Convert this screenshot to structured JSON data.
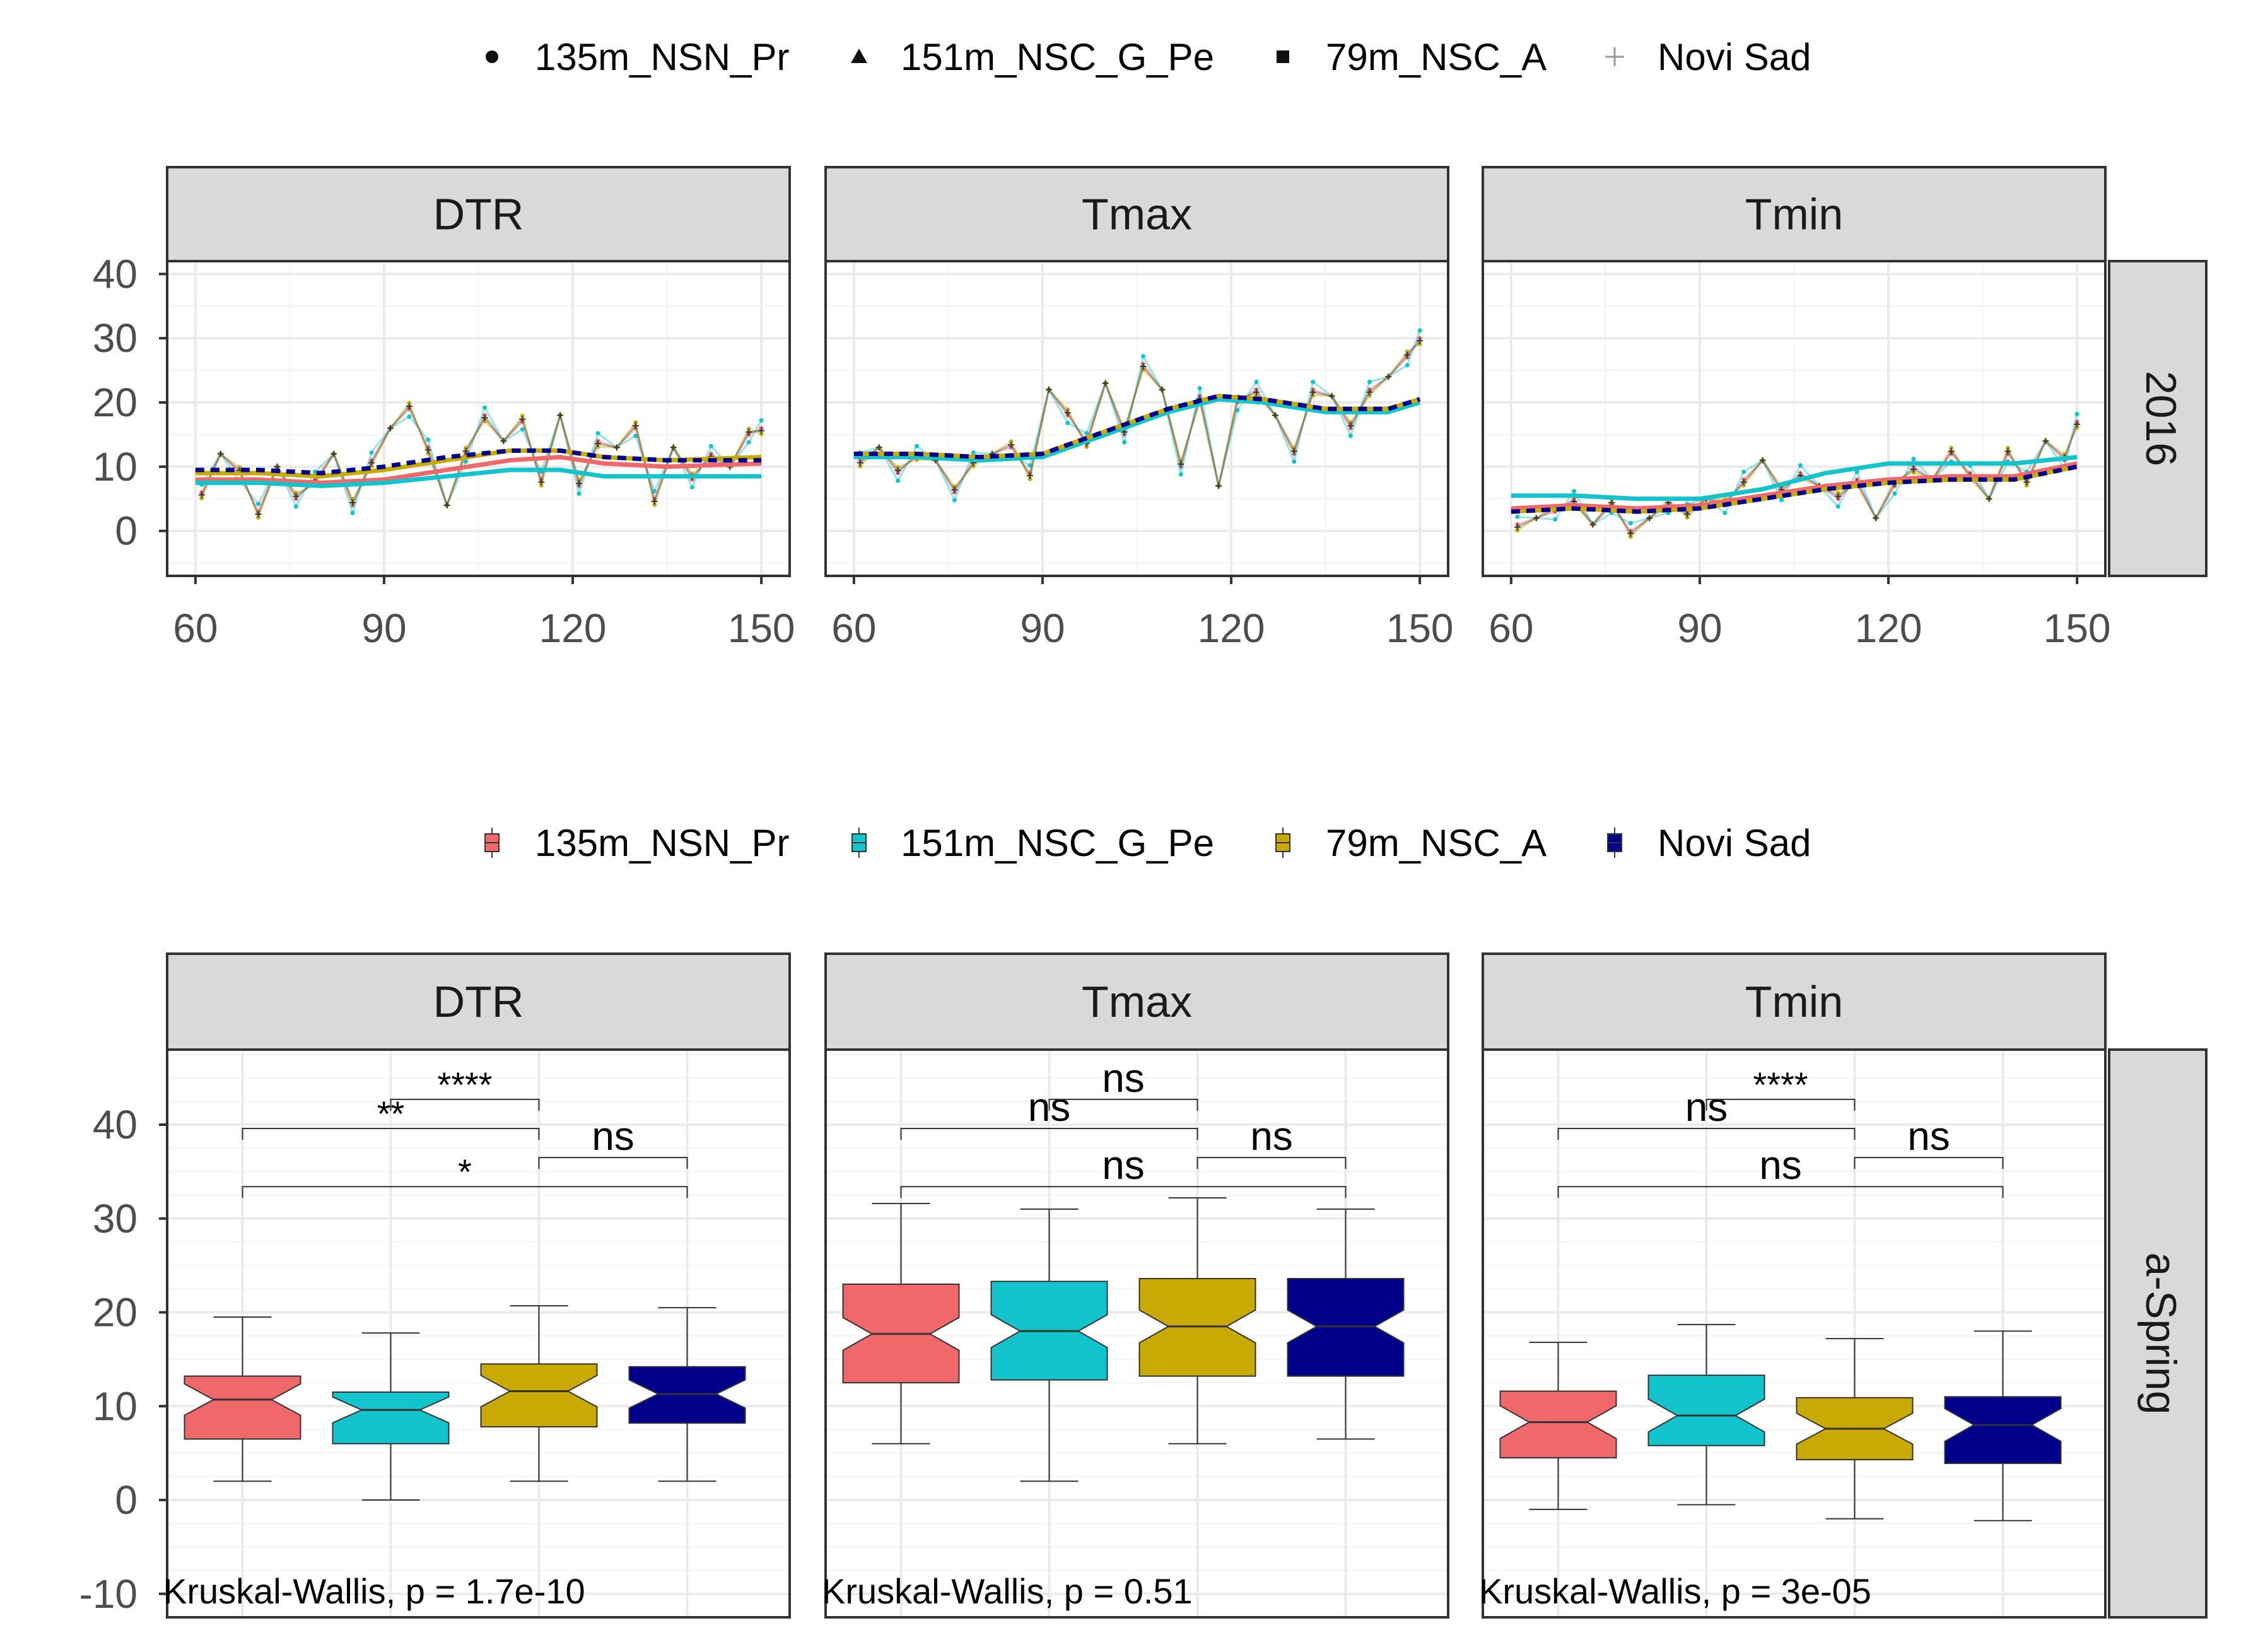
{
  "colors": {
    "135m_NSN_Pr": "#F0686A",
    "151m_NSC_G_Pe": "#14C4CC",
    "79m_NSC_A": "#C9AA05",
    "Novi Sad": "#00008B",
    "strip_bg": "#D9D9D9",
    "grid_major": "#EBEBEB",
    "grid_minor": "#F4F4F4",
    "text": "#4D4D4D",
    "frame": "#333333"
  },
  "legends": {
    "top": {
      "items": [
        {
          "key": "135m_NSN_Pr",
          "label": "135m_NSN_Pr",
          "shape": "circle-icon"
        },
        {
          "key": "151m_NSC_G_Pe",
          "label": "151m_NSC_G_Pe",
          "shape": "triangle-icon"
        },
        {
          "key": "79m_NSC_A",
          "label": "79m_NSC_A",
          "shape": "square-icon"
        },
        {
          "key": "Novi Sad",
          "label": "Novi Sad",
          "shape": "plus-icon"
        }
      ]
    },
    "bottom": {
      "items": [
        {
          "key": "135m_NSN_Pr",
          "label": "135m_NSN_Pr",
          "shape": "boxplot-icon"
        },
        {
          "key": "151m_NSC_G_Pe",
          "label": "151m_NSC_G_Pe",
          "shape": "boxplot-icon"
        },
        {
          "key": "79m_NSC_A",
          "label": "79m_NSC_A",
          "shape": "boxplot-icon"
        },
        {
          "key": "Novi Sad",
          "label": "Novi Sad",
          "shape": "boxplot-icon"
        }
      ]
    }
  },
  "chart_data": [
    {
      "type": "line",
      "title": "",
      "row_strip": "2016",
      "facets": [
        "DTR",
        "Tmax",
        "Tmin"
      ],
      "x_ticks": [
        60,
        90,
        120,
        150
      ],
      "x_range": [
        55.5,
        154.5
      ],
      "y_ticks": [
        0,
        10,
        20,
        30,
        40
      ],
      "y_range": [
        -7,
        42
      ],
      "grid": true,
      "smooth_series": {
        "DTR": [
          {
            "name": "135m_NSN_Pr",
            "x": [
              60,
              70,
              80,
              90,
              100,
              110,
              118,
              125,
              135,
              150
            ],
            "y": [
              8,
              8,
              7.5,
              8,
              9.5,
              11,
              11.5,
              10.5,
              10,
              10.5
            ]
          },
          {
            "name": "151m_NSC_G_Pe",
            "x": [
              60,
              70,
              80,
              90,
              100,
              110,
              118,
              125,
              135,
              150
            ],
            "y": [
              7.5,
              7.5,
              7,
              7.5,
              8.5,
              9.5,
              9.5,
              8.5,
              8.5,
              8.5
            ]
          },
          {
            "name": "79m_NSC_A",
            "x": [
              60,
              70,
              80,
              90,
              100,
              110,
              118,
              125,
              135,
              150
            ],
            "y": [
              9,
              9,
              8.5,
              9.5,
              11,
              12.5,
              12.5,
              11.5,
              11,
              11.5
            ]
          },
          {
            "name": "Novi Sad",
            "x": [
              60,
              70,
              80,
              90,
              100,
              110,
              118,
              125,
              135,
              150
            ],
            "y": [
              9.5,
              9.5,
              9,
              10,
              11.5,
              12.5,
              12.5,
              11.5,
              11,
              11
            ]
          }
        ],
        "Tmax": [
          {
            "name": "135m_NSN_Pr",
            "x": [
              60,
              70,
              80,
              90,
              100,
              110,
              118,
              125,
              135,
              145,
              150
            ],
            "y": [
              12,
              12,
              11.5,
              12,
              15.5,
              19,
              21,
              20.5,
              19,
              19,
              20.5
            ]
          },
          {
            "name": "151m_NSC_G_Pe",
            "x": [
              60,
              70,
              80,
              90,
              100,
              110,
              118,
              125,
              135,
              145,
              150
            ],
            "y": [
              11.5,
              11.5,
              11,
              11.5,
              15,
              18.5,
              20.5,
              20,
              18.5,
              18.5,
              20
            ]
          },
          {
            "name": "79m_NSC_A",
            "x": [
              60,
              70,
              80,
              90,
              100,
              110,
              118,
              125,
              135,
              145,
              150
            ],
            "y": [
              12,
              12,
              11.5,
              12,
              15.5,
              19,
              21,
              20.5,
              19,
              19,
              20.5
            ]
          },
          {
            "name": "Novi Sad",
            "x": [
              60,
              70,
              80,
              90,
              100,
              110,
              118,
              125,
              135,
              145,
              150
            ],
            "y": [
              12,
              12,
              11.5,
              12,
              15.5,
              19,
              21,
              20.5,
              19,
              19,
              20.5
            ]
          }
        ],
        "Tmin": [
          {
            "name": "135m_NSN_Pr",
            "x": [
              60,
              70,
              80,
              90,
              100,
              110,
              120,
              130,
              140,
              150
            ],
            "y": [
              3.5,
              4,
              3.5,
              4,
              5.5,
              7,
              8,
              8.5,
              8.5,
              10.5
            ]
          },
          {
            "name": "151m_NSC_G_Pe",
            "x": [
              60,
              70,
              80,
              90,
              100,
              110,
              120,
              130,
              140,
              150
            ],
            "y": [
              5.5,
              5.5,
              5,
              5,
              6.5,
              9,
              10.5,
              10.5,
              10.5,
              11.5
            ]
          },
          {
            "name": "79m_NSC_A",
            "x": [
              60,
              70,
              80,
              90,
              100,
              110,
              120,
              130,
              140,
              150
            ],
            "y": [
              3,
              3.5,
              3,
              3.5,
              5,
              6.5,
              7.5,
              8,
              8,
              10
            ]
          },
          {
            "name": "Novi Sad",
            "x": [
              60,
              70,
              80,
              90,
              100,
              110,
              120,
              130,
              140,
              150
            ],
            "y": [
              3,
              3.5,
              3,
              3.5,
              5,
              6.5,
              7.5,
              8,
              8,
              10
            ]
          }
        ]
      },
      "daily_series": {
        "DTR": {
          "x": [
            61,
            64,
            67,
            70,
            73,
            76,
            79,
            82,
            85,
            88,
            91,
            94,
            97,
            100,
            103,
            106,
            109,
            112,
            115,
            118,
            121,
            124,
            127,
            130,
            133,
            136,
            139,
            142,
            145,
            148,
            150
          ],
          "y": [
            6,
            12,
            9,
            3,
            10,
            5,
            8,
            12,
            4,
            11,
            16,
            19,
            13,
            4,
            12,
            18,
            14,
            17,
            8,
            18,
            7,
            14,
            13,
            16,
            5,
            13,
            8,
            12,
            10,
            15,
            16
          ]
        },
        "Tmax": {
          "x": [
            61,
            64,
            67,
            70,
            73,
            76,
            79,
            82,
            85,
            88,
            91,
            94,
            97,
            100,
            103,
            106,
            109,
            112,
            115,
            118,
            121,
            124,
            127,
            130,
            133,
            136,
            139,
            142,
            145,
            148,
            150
          ],
          "y": [
            11,
            13,
            9,
            12,
            11,
            6,
            11,
            12,
            13,
            9,
            22,
            18,
            14,
            23,
            15,
            26,
            22,
            10,
            21,
            7,
            20,
            22,
            18,
            12,
            22,
            21,
            16,
            22,
            24,
            27,
            30
          ]
        },
        "Tmin": {
          "x": [
            61,
            64,
            67,
            70,
            73,
            76,
            79,
            82,
            85,
            88,
            91,
            94,
            97,
            100,
            103,
            106,
            109,
            112,
            115,
            118,
            121,
            124,
            127,
            130,
            133,
            136,
            139,
            142,
            145,
            148,
            150
          ],
          "y": [
            1,
            2,
            3,
            5,
            1,
            4,
            0,
            2,
            4,
            3,
            5,
            4,
            8,
            11,
            6,
            9,
            7,
            5,
            8,
            2,
            7,
            10,
            8,
            12,
            9,
            5,
            12,
            8,
            14,
            11,
            17
          ]
        }
      }
    },
    {
      "type": "boxplot",
      "title": "",
      "row_strip": "a-Spring",
      "facets": [
        "DTR",
        "Tmax",
        "Tmin"
      ],
      "categories": [
        "135m_NSN_Pr",
        "151m_NSC_G_Pe",
        "79m_NSC_A",
        "Novi Sad"
      ],
      "y_ticks": [
        -10,
        0,
        10,
        20,
        30,
        40
      ],
      "y_range": [
        -12.5,
        48
      ],
      "grid": true,
      "boxes": {
        "DTR": [
          {
            "name": "135m_NSN_Pr",
            "min": 2,
            "q1": 6.5,
            "median": 10.7,
            "q3": 13.2,
            "max": 19.5
          },
          {
            "name": "151m_NSC_G_Pe",
            "min": 0,
            "q1": 6,
            "median": 9.6,
            "q3": 11.5,
            "max": 17.8
          },
          {
            "name": "79m_NSC_A",
            "min": 2,
            "q1": 7.8,
            "median": 11.6,
            "q3": 14.5,
            "max": 20.7
          },
          {
            "name": "Novi Sad",
            "min": 2,
            "q1": 8.2,
            "median": 11.3,
            "q3": 14.2,
            "max": 20.5
          }
        ],
        "Tmax": [
          {
            "name": "135m_NSN_Pr",
            "min": 6,
            "q1": 12.5,
            "median": 17.7,
            "q3": 23,
            "max": 31.6
          },
          {
            "name": "151m_NSC_G_Pe",
            "min": 2,
            "q1": 12.8,
            "median": 18,
            "q3": 23.3,
            "max": 31
          },
          {
            "name": "79m_NSC_A",
            "min": 6,
            "q1": 13.2,
            "median": 18.5,
            "q3": 23.6,
            "max": 32.2
          },
          {
            "name": "Novi Sad",
            "min": 6.5,
            "q1": 13.2,
            "median": 18.5,
            "q3": 23.6,
            "max": 31
          }
        ],
        "Tmin": [
          {
            "name": "135m_NSN_Pr",
            "min": -1,
            "q1": 4.5,
            "median": 8.3,
            "q3": 11.6,
            "max": 16.8
          },
          {
            "name": "151m_NSC_G_Pe",
            "min": -0.5,
            "q1": 5.8,
            "median": 9,
            "q3": 13.3,
            "max": 18.7
          },
          {
            "name": "79m_NSC_A",
            "min": -2,
            "q1": 4.3,
            "median": 7.6,
            "q3": 10.9,
            "max": 17.2
          },
          {
            "name": "Novi Sad",
            "min": -2.2,
            "q1": 3.9,
            "median": 8,
            "q3": 11,
            "max": 18
          }
        ]
      },
      "comparisons": {
        "DTR": [
          {
            "a": 3,
            "b": 4,
            "y": 36.5,
            "label": "ns"
          },
          {
            "a": 1,
            "b": 3,
            "y": 39.6,
            "label": "**"
          },
          {
            "a": 2,
            "b": 3,
            "y": 42.7,
            "label": "****"
          },
          {
            "a": 1,
            "b": 4,
            "y": 33.4,
            "label": "*"
          }
        ],
        "Tmax": [
          {
            "a": 3,
            "b": 4,
            "y": 36.5,
            "label": "ns"
          },
          {
            "a": 1,
            "b": 3,
            "y": 39.6,
            "label": "ns"
          },
          {
            "a": 2,
            "b": 3,
            "y": 42.7,
            "label": "ns"
          },
          {
            "a": 1,
            "b": 4,
            "y": 33.4,
            "label": "ns"
          }
        ],
        "Tmin": [
          {
            "a": 3,
            "b": 4,
            "y": 36.5,
            "label": "ns"
          },
          {
            "a": 1,
            "b": 3,
            "y": 39.6,
            "label": "ns"
          },
          {
            "a": 2,
            "b": 3,
            "y": 42.7,
            "label": "****"
          },
          {
            "a": 1,
            "b": 4,
            "y": 33.4,
            "label": "ns"
          }
        ]
      },
      "tests": {
        "DTR": "Kruskal-Wallis, p = 1.7e-10",
        "Tmax": "Kruskal-Wallis, p = 0.51",
        "Tmin": "Kruskal-Wallis, p = 3e-05"
      }
    }
  ]
}
